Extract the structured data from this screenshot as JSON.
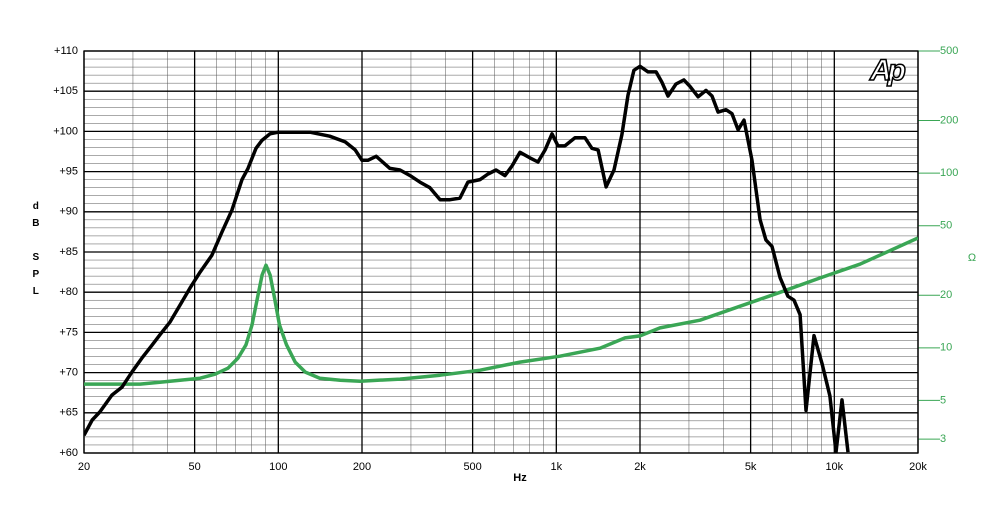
{
  "chart_data": {
    "type": "line",
    "x_label": "Hz",
    "y_label": "dB SPL",
    "y2_label": "Ω",
    "logo": "Ap",
    "xscale": "log",
    "y2scale": "log",
    "grid": true,
    "minor_grid": true,
    "xlim": [
      20,
      20000
    ],
    "xticks": [
      20,
      50,
      100,
      200,
      500,
      {
        "value": 1000,
        "label": "1k"
      },
      {
        "value": 2000,
        "label": "2k"
      },
      {
        "value": 5000,
        "label": "5k"
      },
      {
        "value": 10000,
        "label": "10k"
      },
      {
        "value": 20000,
        "label": "20k"
      }
    ],
    "ylim": [
      60,
      110
    ],
    "yticks": [
      {
        "value": 60,
        "label": "+60"
      },
      {
        "value": 65,
        "label": "+65"
      },
      {
        "value": 70,
        "label": "+70"
      },
      {
        "value": 75,
        "label": "+75"
      },
      {
        "value": 80,
        "label": "+80"
      },
      {
        "value": 85,
        "label": "+85"
      },
      {
        "value": 90,
        "label": "+90"
      },
      {
        "value": 95,
        "label": "+95"
      },
      {
        "value": 100,
        "label": "+100"
      },
      {
        "value": 105,
        "label": "+105"
      },
      {
        "value": 110,
        "label": "+110"
      }
    ],
    "y2lim": [
      2.5,
      500
    ],
    "y2ticks": [
      3,
      5,
      10,
      20,
      50,
      100,
      200,
      500
    ],
    "series": [
      {
        "color": "#000000",
        "x": [
          20,
          21.4,
          22.8,
          25.2,
          27.4,
          29.8,
          32.3,
          35.1,
          37.5,
          40.8,
          44.3,
          48.1,
          52.3,
          57.7,
          62.7,
          68.1,
          74,
          77.8,
          83.1,
          87.4,
          93.4,
          100,
          110,
          130,
          153,
          174,
          189,
          200,
          210,
          225,
          252,
          274,
          298,
          323,
          351,
          382,
          415,
          450,
          481,
          532,
          568,
          607,
          654,
          693,
          740,
          804,
          859,
          911,
          965,
          1014,
          1074,
          1167,
          1268,
          1343,
          1413,
          1510,
          1612,
          1722,
          1811,
          1902,
          2000,
          2138,
          2285,
          2399,
          2523,
          2694,
          2878,
          3027,
          3235,
          3455,
          3632,
          3818,
          4078,
          4286,
          4506,
          4733,
          5058,
          5408,
          5676,
          5970,
          6382,
          6808,
          7162,
          7534,
          7908,
          8454,
          9038,
          9640,
          10140,
          10660,
          11196
        ],
        "values": [
          62.2,
          64.1,
          65.1,
          67.2,
          68.2,
          70.1,
          71.8,
          73.4,
          74.7,
          76.3,
          78.4,
          80.5,
          82.5,
          84.6,
          87.5,
          90.2,
          94.0,
          95.4,
          97.9,
          98.9,
          99.7,
          99.9,
          99.9,
          99.9,
          99.4,
          98.7,
          97.7,
          96.4,
          96.4,
          96.9,
          95.4,
          95.2,
          94.5,
          93.7,
          93.0,
          91.5,
          91.5,
          91.7,
          93.7,
          94.0,
          94.7,
          95.2,
          94.5,
          95.7,
          97.4,
          96.7,
          96.2,
          97.7,
          99.7,
          98.2,
          98.2,
          99.2,
          99.2,
          97.9,
          97.7,
          93.1,
          95.2,
          99.6,
          104.5,
          107.6,
          108.1,
          107.4,
          107.4,
          106.1,
          104.4,
          105.9,
          106.4,
          105.6,
          104.3,
          105.1,
          104.4,
          102.4,
          102.7,
          102.2,
          100.2,
          101.4,
          96.4,
          89.0,
          86.5,
          85.7,
          81.8,
          79.5,
          79.0,
          77.2,
          65.3,
          74.6,
          71.1,
          67.1,
          60.1,
          66.6,
          60.1
        ]
      },
      {
        "color": "#3aa655",
        "axis": "y2",
        "x": [
          20,
          31.8,
          37.5,
          44.3,
          52.3,
          59.2,
          65.9,
          71.6,
          76.5,
          80.4,
          84.5,
          87.4,
          90.3,
          93.4,
          96.5,
          101,
          107,
          115,
          125,
          141,
          167,
          197,
          274,
          382,
          532,
          740,
          1030,
          1436,
          1766,
          2000,
          2361,
          3288,
          4581,
          6382,
          8872,
          12360,
          20000
        ],
        "values": [
          6.2,
          6.2,
          6.35,
          6.53,
          6.7,
          7.06,
          7.64,
          8.73,
          10.4,
          13.5,
          20.0,
          26.1,
          29.7,
          26.1,
          20.0,
          13.5,
          10.4,
          8.28,
          7.26,
          6.7,
          6.53,
          6.44,
          6.62,
          6.97,
          7.45,
          8.28,
          8.95,
          9.95,
          11.4,
          11.7,
          13.0,
          14.4,
          17.3,
          20.8,
          25.1,
          30.1,
          42.5
        ]
      }
    ]
  }
}
